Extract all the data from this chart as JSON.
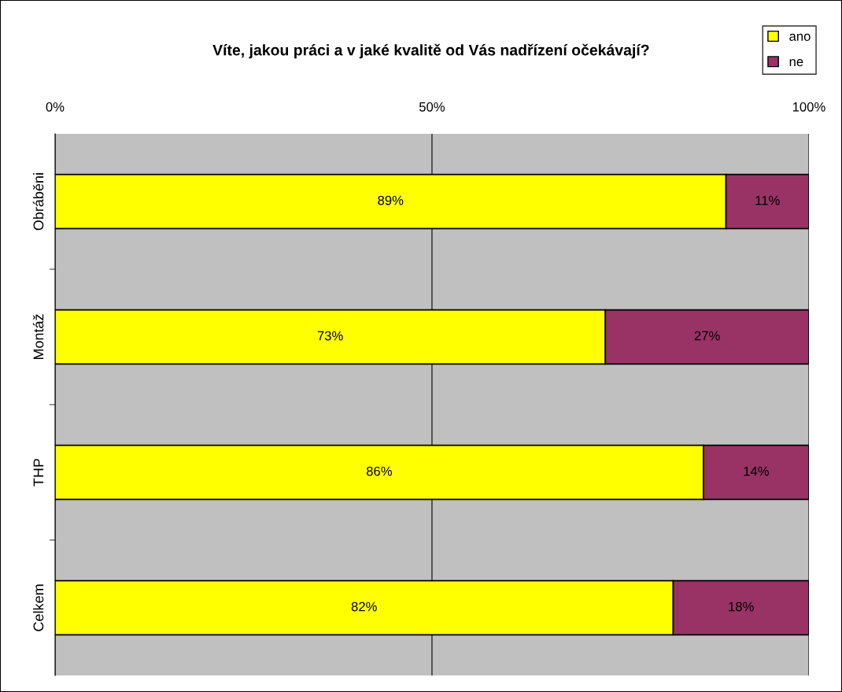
{
  "chart_data": {
    "type": "bar",
    "orientation": "horizontal",
    "stacked": true,
    "title": "Víte, jakou práci a v jaké kvalitě od Vás nadřízení očekávají?",
    "categories": [
      "Obráběni",
      "Montáž",
      "THP",
      "Celkem"
    ],
    "series": [
      {
        "name": "ano",
        "color": "#ffff00",
        "values": [
          89,
          73,
          86,
          82
        ],
        "value_labels": [
          "89%",
          "73%",
          "86%",
          "82%"
        ]
      },
      {
        "name": "ne",
        "color": "#993366",
        "values": [
          11,
          27,
          14,
          18
        ],
        "value_labels": [
          "11%",
          "27%",
          "14%",
          "18%"
        ]
      }
    ],
    "xlim": [
      0,
      100
    ],
    "xticks": [
      {
        "value": 0,
        "label": "0%"
      },
      {
        "value": 50,
        "label": "50%"
      },
      {
        "value": 100,
        "label": "100%"
      }
    ],
    "grid": "x",
    "legend": "top right"
  }
}
